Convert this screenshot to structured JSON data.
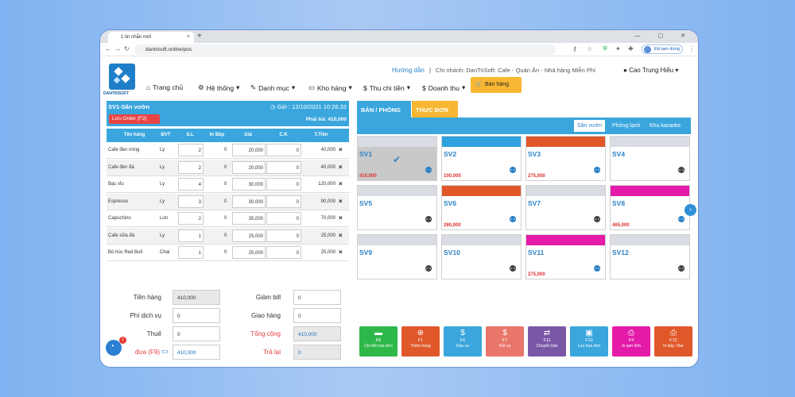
{
  "browser": {
    "tab_title": "1 tin nhắn mới",
    "tab_close": "×",
    "new_tab": "+",
    "window_controls": "— ▢ ✕",
    "url": "dantrisoft.online/pos",
    "profile_label": "Đã tạm dừng"
  },
  "header": {
    "logo_text": "DANTRISOFT",
    "huong_dan": "Hướng dẫn",
    "separator": "|",
    "branch": "Chi nhánh: DanTriSoft: Cafe - Quán Ăn - Nhà hàng Miễn Phí",
    "user": "Cao Trung Hiếu"
  },
  "menu": [
    {
      "icon": "home-icon",
      "glyph": "⌂",
      "label": "Trang chủ",
      "caret": ""
    },
    {
      "icon": "gear-icon",
      "glyph": "⚙",
      "label": "Hệ thống",
      "caret": "▾"
    },
    {
      "icon": "wrench-icon",
      "glyph": "✎",
      "label": "Danh mục",
      "caret": "▾"
    },
    {
      "icon": "warehouse-icon",
      "glyph": "▭",
      "label": "Kho hàng",
      "caret": "▾"
    },
    {
      "icon": "dollar-icon",
      "glyph": "$",
      "label": "Thu chi tiền",
      "caret": "▾"
    },
    {
      "icon": "dollar-icon",
      "glyph": "$",
      "label": "Doanh thu",
      "caret": "▾"
    }
  ],
  "sell_button": "Bán hàng",
  "order": {
    "title": "SV1-Sân vườn",
    "time": "Giờ : 12/10/2021 10:26:32",
    "save_button": "Lưu Order (F2)",
    "must_pay": "Phải trả: 410,000",
    "columns": [
      "Tên hàng",
      "ĐVT",
      "S.L",
      "In Bếp",
      "Giá",
      "C.K",
      "T.Tiền"
    ],
    "rows": [
      {
        "name": "Cafe đen nóng",
        "unit": "Ly",
        "qty": "2",
        "kitchen": "0",
        "price": "20,000",
        "discount": "0",
        "total": "40,000"
      },
      {
        "name": "Cafe đen đá",
        "unit": "Ly",
        "qty": "2",
        "kitchen": "0",
        "price": "20,000",
        "discount": "0",
        "total": "40,000"
      },
      {
        "name": "Bạc xỉu",
        "unit": "Ly",
        "qty": "4",
        "kitchen": "0",
        "price": "30,000",
        "discount": "0",
        "total": "120,000"
      },
      {
        "name": "Espresso",
        "unit": "Ly",
        "qty": "3",
        "kitchen": "0",
        "price": "30,000",
        "discount": "0",
        "total": "90,000"
      },
      {
        "name": "Capuchino",
        "unit": "Lon",
        "qty": "2",
        "kitchen": "0",
        "price": "35,000",
        "discount": "0",
        "total": "70,000"
      },
      {
        "name": "Cafe sữa đá",
        "unit": "Ly",
        "qty": "1",
        "kitchen": "0",
        "price": "25,000",
        "discount": "0",
        "total": "25,000"
      },
      {
        "name": "Bò húc Red Bull",
        "unit": "Chai",
        "qty": "1",
        "kitchen": "0",
        "price": "25,000",
        "discount": "0",
        "total": "25,000"
      }
    ],
    "delete_glyph": "×"
  },
  "summary": {
    "tien_hang_label": "Tiền hàng",
    "tien_hang": "410,000",
    "phi_dv_label": "Phí dịch vụ",
    "phi_dv": "0",
    "thue_label": "Thuế",
    "thue": "0",
    "khach_dua_label": "đưa (F9)",
    "khach_dua": "410,000",
    "giam_bill_label": "Giảm bill",
    "giam_bill": "0",
    "giao_hang_label": "Giao hàng",
    "giao_hang": "0",
    "tong_cong_label": "Tổng cộng",
    "tong_cong": "410,000",
    "tra_lai_label": "Trả lại",
    "tra_lai": "0"
  },
  "right": {
    "tab_ban_phong": "BÀN / PHÒNG",
    "tab_thuc_don": "THỰC ĐƠN",
    "areas": [
      "Sân vườn",
      "Phòng lạnh",
      "Khu karaoke"
    ],
    "next": "›",
    "tables": [
      {
        "name": "SV1",
        "amount": "410,000",
        "bar": "#d9dde3",
        "selected": true,
        "check": "✔"
      },
      {
        "name": "SV2",
        "amount": "100,000",
        "bar": "#2ea1df",
        "selected": false,
        "check": ""
      },
      {
        "name": "SV3",
        "amount": "275,000",
        "bar": "#e0582a",
        "selected": false,
        "check": ""
      },
      {
        "name": "SV4",
        "amount": "",
        "bar": "#d9dde3",
        "selected": false,
        "check": ""
      },
      {
        "name": "SV5",
        "amount": "",
        "bar": "#d9dde3",
        "selected": false,
        "check": ""
      },
      {
        "name": "SV6",
        "amount": "280,000",
        "bar": "#e0582a",
        "selected": false,
        "check": ""
      },
      {
        "name": "SV7",
        "amount": "",
        "bar": "#d9dde3",
        "selected": false,
        "check": ""
      },
      {
        "name": "SV8",
        "amount": "465,000",
        "bar": "#e31ba8",
        "selected": false,
        "check": ""
      },
      {
        "name": "SV9",
        "amount": "",
        "bar": "#d9dde3",
        "selected": false,
        "check": ""
      },
      {
        "name": "SV10",
        "amount": "",
        "bar": "#d9dde3",
        "selected": false,
        "check": ""
      },
      {
        "name": "SV11",
        "amount": "275,000",
        "bar": "#e31ba8",
        "selected": false,
        "check": ""
      },
      {
        "name": "SV12",
        "amount": "",
        "bar": "#d9dde3",
        "selected": false,
        "check": ""
      }
    ],
    "table_icon": "table-chairs-icon"
  },
  "fbuttons": [
    {
      "key": "F8",
      "label": "Chi tiết hóa đơn",
      "color": "#2fb84a",
      "glyph": "▬"
    },
    {
      "key": "F1",
      "label": "Thêm hàng",
      "color": "#e0582a",
      "glyph": "⊕"
    },
    {
      "key": "F6",
      "label": "Đầu ca",
      "color": "#3aa6dd",
      "glyph": "$"
    },
    {
      "key": "F7",
      "label": "Kết ca",
      "color": "#e8766a",
      "glyph": "$"
    },
    {
      "key": "F11",
      "label": "Chuyển bàn",
      "color": "#7b57a8",
      "glyph": "⇄"
    },
    {
      "key": "F10",
      "label": "Lưu hoá đơn",
      "color": "#3aa6dd",
      "glyph": "▣"
    },
    {
      "key": "F4",
      "label": "In tạm tính",
      "color": "#e31ba8",
      "glyph": "⎙"
    },
    {
      "key": "F12",
      "label": "In bếp / Bar",
      "color": "#e0582a",
      "glyph": "⎙"
    }
  ],
  "chat_badge": "1",
  "colors": {
    "primary": "#3aa6dd",
    "accent": "#f7b733",
    "danger": "#e94444"
  }
}
